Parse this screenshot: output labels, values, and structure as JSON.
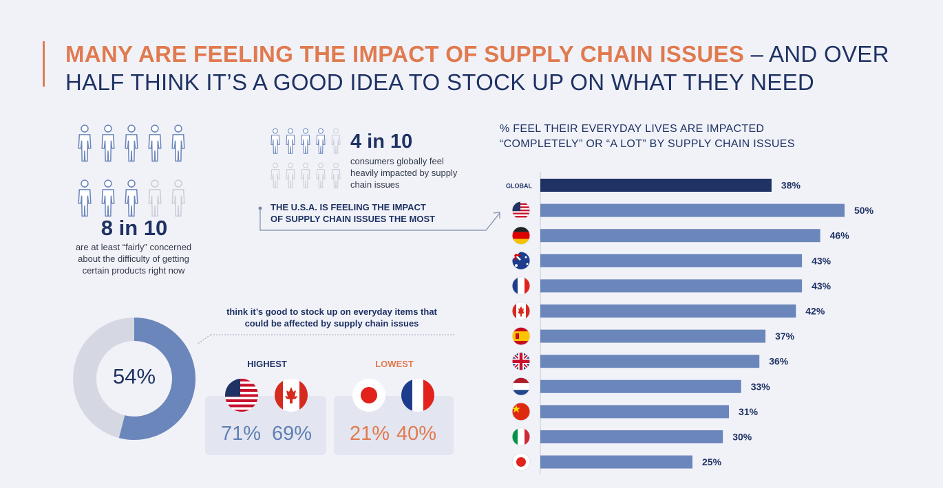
{
  "title": {
    "highlight": "MANY ARE FEELING THE IMPACT OF SUPPLY CHAIN ISSUES",
    "rest": " – AND OVER HALF THINK IT’S A GOOD IDEA TO STOCK UP ON WHAT THEY NEED"
  },
  "stat_concerned": {
    "value": "8 in 10",
    "text": "are at least “fairly” concerned about the difficulty of getting certain products right now",
    "filled": 8,
    "total": 10
  },
  "stat_impacted": {
    "value": "4 in 10",
    "text": "consumers globally feel heavily impacted by supply chain issues",
    "filled": 4,
    "total": 10
  },
  "callout": "THE U.S.A. IS FEELING THE IMPACT OF SUPPLY CHAIN ISSUES THE MOST",
  "donut": {
    "label": "54%",
    "value": 54,
    "caption": "think it’s good to stock up on everyday items that could be affected by supply chain issues"
  },
  "highest": {
    "label": "HIGHEST",
    "items": [
      {
        "country": "usa",
        "value": "71%"
      },
      {
        "country": "canada",
        "value": "69%"
      }
    ]
  },
  "lowest": {
    "label": "LOWEST",
    "items": [
      {
        "country": "japan",
        "value": "21%"
      },
      {
        "country": "france",
        "value": "40%"
      }
    ]
  },
  "colors": {
    "accent": "#e07a4f",
    "navy": "#1e3263",
    "bar": "#6b86bb",
    "bar_global": "#1e3263"
  },
  "chart_data": {
    "type": "bar",
    "orientation": "horizontal",
    "title": "%  FEEL THEIR EVERYDAY LIVES ARE IMPACTED “COMPLETELY” OR “A LOT” BY SUPPLY CHAIN ISSUES",
    "categories": [
      "GLOBAL",
      "usa",
      "germany",
      "australia",
      "france",
      "canada",
      "spain",
      "uk",
      "netherlands",
      "china",
      "italy",
      "japan"
    ],
    "category_display": [
      "GLOBAL",
      "",
      "",
      "",
      "",
      "",
      "",
      "",
      "",
      "",
      "",
      ""
    ],
    "values": [
      38,
      50,
      46,
      43,
      43,
      42,
      37,
      36,
      33,
      31,
      30,
      25
    ],
    "value_labels": [
      "38%",
      "50%",
      "46%",
      "43%",
      "43%",
      "42%",
      "37%",
      "36%",
      "33%",
      "31%",
      "30%",
      "25%"
    ],
    "xlim": [
      0,
      50
    ],
    "grid": false
  }
}
